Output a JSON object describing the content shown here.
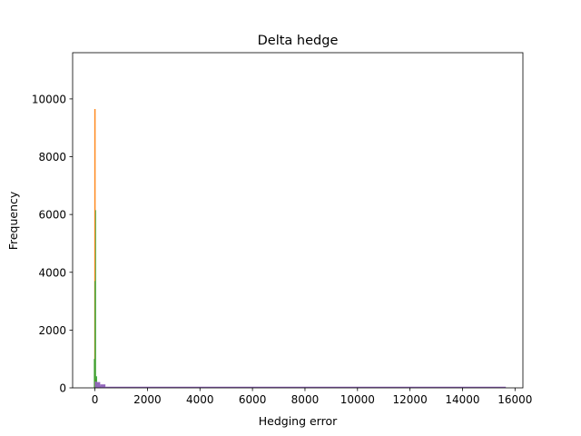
{
  "chart_data": {
    "type": "histogram",
    "title": "Delta hedge",
    "xlabel": "Hedging error",
    "ylabel": "Frequency",
    "xlim": [
      -850,
      16300
    ],
    "ylim": [
      0,
      11600
    ],
    "xticks": [
      0,
      2000,
      4000,
      6000,
      8000,
      10000,
      12000,
      14000,
      16000
    ],
    "yticks": [
      0,
      2000,
      4000,
      6000,
      8000,
      10000
    ],
    "xtick_labels": [
      "0",
      "2000",
      "4000",
      "6000",
      "8000",
      "10000",
      "12000",
      "14000",
      "16000"
    ],
    "ytick_labels": [
      "0",
      "2000",
      "4000",
      "6000",
      "8000",
      "10000"
    ],
    "grid": false,
    "legend": "none",
    "series": [
      {
        "color": "#ff7f0e",
        "bars": [
          {
            "x0": -25,
            "x1": 0,
            "value": 9650
          },
          {
            "x0": 0,
            "x1": 25,
            "value": 9650
          },
          {
            "x0": 25,
            "x1": 50,
            "value": 300
          },
          {
            "x0": 50,
            "x1": 120,
            "value": 80
          }
        ]
      },
      {
        "color": "#2ca02c",
        "bars": [
          {
            "x0": -40,
            "x1": -10,
            "value": 1000
          },
          {
            "x0": -10,
            "x1": 15,
            "value": 3700
          },
          {
            "x0": 15,
            "x1": 40,
            "value": 6150
          },
          {
            "x0": 40,
            "x1": 80,
            "value": 400
          },
          {
            "x0": 80,
            "x1": 150,
            "value": 150
          },
          {
            "x0": 150,
            "x1": 300,
            "value": 60
          }
        ]
      },
      {
        "color": "#9467bd",
        "bars": [
          {
            "x0": 0,
            "x1": 60,
            "value": 220
          },
          {
            "x0": 60,
            "x1": 200,
            "value": 200
          },
          {
            "x0": 200,
            "x1": 400,
            "value": 120
          },
          {
            "x0": 400,
            "x1": 15650,
            "value": 40
          }
        ]
      }
    ]
  }
}
